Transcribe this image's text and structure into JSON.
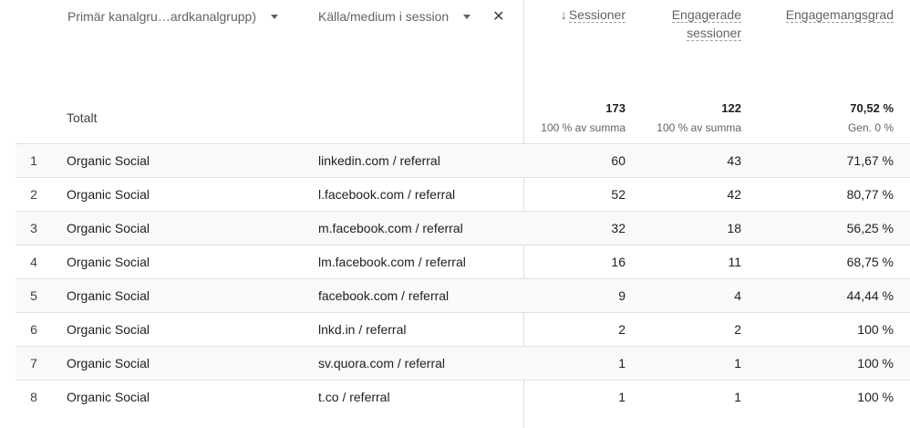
{
  "dimensions": {
    "primary": "Primär kanalgru…ardkanalgrupp)",
    "secondary": "Källa/medium i session"
  },
  "metrics": {
    "sessions_label": "Sessioner",
    "engaged_line1": "Engagerade",
    "engaged_line2": "sessioner",
    "engagement_rate_label": "Engagemangsgrad"
  },
  "totals": {
    "label": "Totalt",
    "sessions": "173",
    "sessions_sub": "100 % av summa",
    "engaged": "122",
    "engaged_sub": "100 % av summa",
    "rate": "70,52 %",
    "rate_sub": "Gen. 0 %"
  },
  "rows": [
    {
      "idx": "1",
      "channel": "Organic Social",
      "source": "linkedin.com / referral",
      "sessions": "60",
      "engaged": "43",
      "rate": "71,67 %"
    },
    {
      "idx": "2",
      "channel": "Organic Social",
      "source": "l.facebook.com / referral",
      "sessions": "52",
      "engaged": "42",
      "rate": "80,77 %"
    },
    {
      "idx": "3",
      "channel": "Organic Social",
      "source": "m.facebook.com / referral",
      "sessions": "32",
      "engaged": "18",
      "rate": "56,25 %"
    },
    {
      "idx": "4",
      "channel": "Organic Social",
      "source": "lm.facebook.com / referral",
      "sessions": "16",
      "engaged": "11",
      "rate": "68,75 %"
    },
    {
      "idx": "5",
      "channel": "Organic Social",
      "source": "facebook.com / referral",
      "sessions": "9",
      "engaged": "4",
      "rate": "44,44 %"
    },
    {
      "idx": "6",
      "channel": "Organic Social",
      "source": "lnkd.in / referral",
      "sessions": "2",
      "engaged": "2",
      "rate": "100 %"
    },
    {
      "idx": "7",
      "channel": "Organic Social",
      "source": "sv.quora.com / referral",
      "sessions": "1",
      "engaged": "1",
      "rate": "100 %"
    },
    {
      "idx": "8",
      "channel": "Organic Social",
      "source": "t.co / referral",
      "sessions": "1",
      "engaged": "1",
      "rate": "100 %"
    }
  ]
}
